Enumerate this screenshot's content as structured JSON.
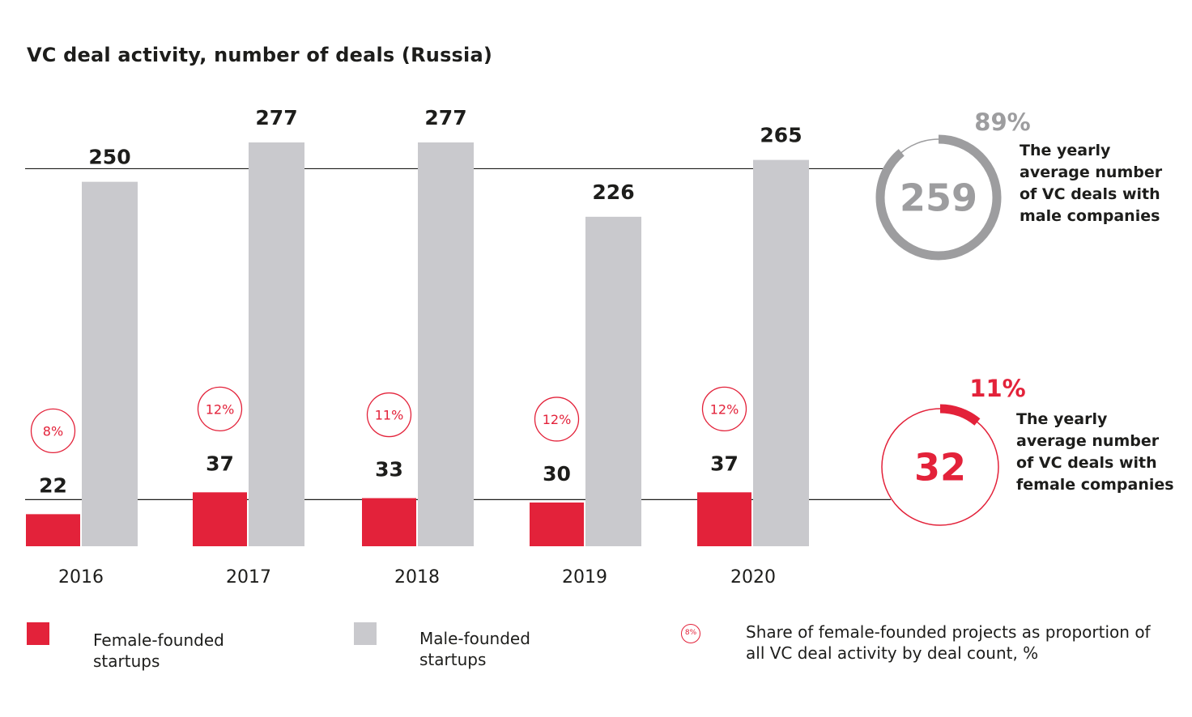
{
  "chart_data": {
    "type": "bar",
    "title": "VC deal activity, number of deals (Russia)",
    "categories": [
      "2016",
      "2017",
      "2018",
      "2019",
      "2020"
    ],
    "series": [
      {
        "name": "Female-founded startups",
        "color": "#e3223a",
        "values": [
          22,
          37,
          33,
          30,
          37
        ]
      },
      {
        "name": "Male-founded startups",
        "color": "#c9c9cd",
        "values": [
          250,
          277,
          277,
          226,
          265
        ]
      }
    ],
    "female_share_pct": [
      "8%",
      "12%",
      "11%",
      "12%",
      "12%"
    ],
    "reference_lines": [
      {
        "name": "male-average",
        "value": 259
      },
      {
        "name": "female-average",
        "value": 32
      }
    ],
    "ylim": [
      0,
      277
    ]
  },
  "summary": {
    "male": {
      "average": "259",
      "share": "89%",
      "share_value": 0.89,
      "text": "The yearly average number of VC deals with male companies"
    },
    "female": {
      "average": "32",
      "share": "11%",
      "share_value": 0.11,
      "text": "The yearly average number of VC deals with female companies"
    }
  },
  "legend": {
    "female": "Female-founded startups",
    "male": "Male-founded startups",
    "share_badge": "8%",
    "share_text": "Share of female-founded projects as proportion of all VC deal activity by deal count, %"
  },
  "colors": {
    "female": "#e3223a",
    "male": "#c9c9cd",
    "male_dark": "#9d9d9f"
  }
}
